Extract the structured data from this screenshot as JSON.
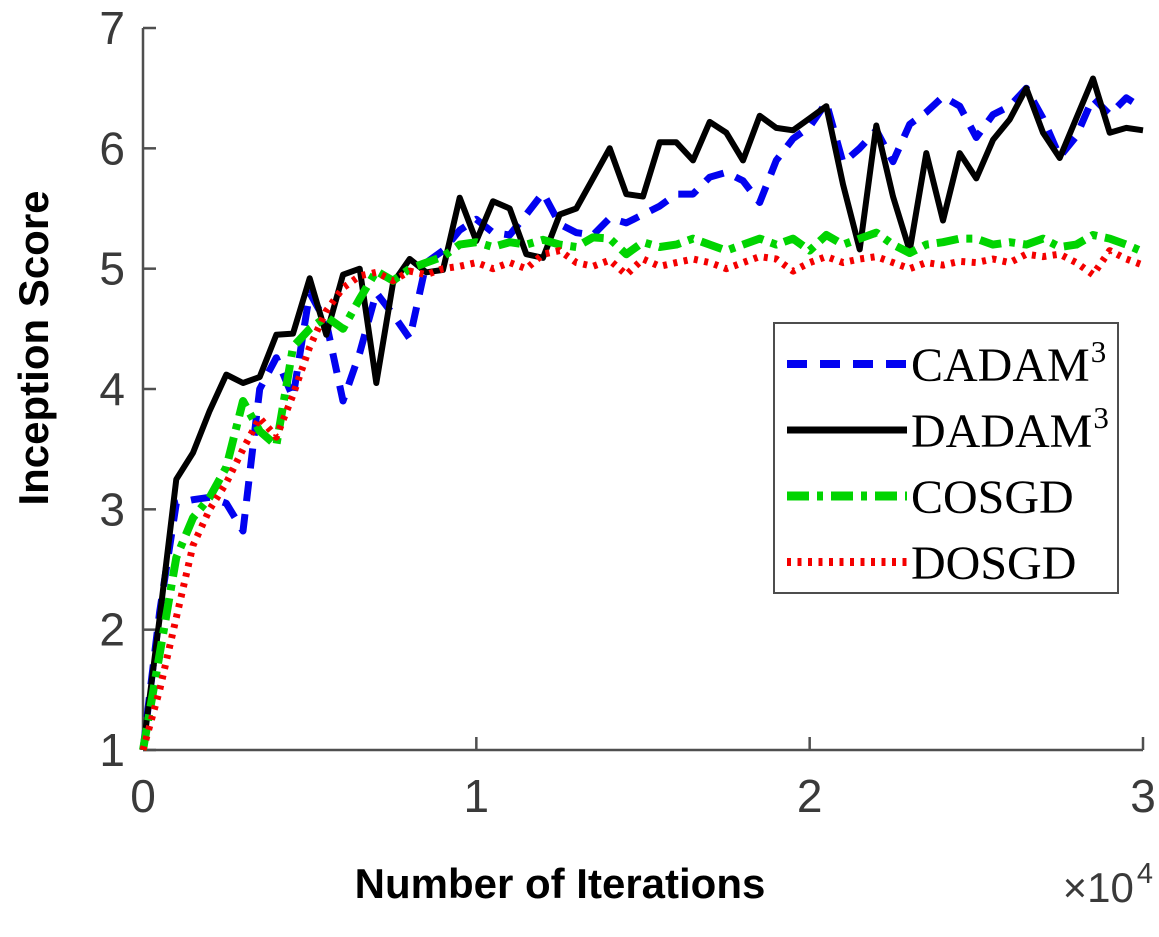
{
  "figure": {
    "xlabel": "Number of Iterations",
    "ylabel": "Inception Score",
    "x_offset_base": "×10",
    "x_offset_exp": "4"
  },
  "legend": {
    "items": [
      {
        "id": "cadam3",
        "label": "CADAM",
        "sup": "3"
      },
      {
        "id": "dadam3",
        "label": "DADAM",
        "sup": "3"
      },
      {
        "id": "cosgd",
        "label": "COSGD",
        "sup": ""
      },
      {
        "id": "dosgd",
        "label": "DOSGD",
        "sup": ""
      }
    ]
  },
  "chart_data": {
    "type": "line",
    "title": "",
    "xlabel": "Number of Iterations",
    "ylabel": "Inception Score",
    "x_units": "iterations × 10^4",
    "xlim": [
      0,
      3
    ],
    "ylim": [
      1,
      7
    ],
    "xticks": [
      0,
      1,
      2,
      3
    ],
    "yticks": [
      1,
      2,
      3,
      4,
      5,
      6,
      7
    ],
    "grid": false,
    "legend_position": "right-middle",
    "axis_color": "#4f4f4f",
    "tick_label_color": "#3a3a3a",
    "x": [
      0,
      0.05,
      0.1,
      0.15,
      0.2,
      0.25,
      0.3,
      0.35,
      0.4,
      0.45,
      0.5,
      0.55,
      0.6,
      0.65,
      0.7,
      0.75,
      0.8,
      0.85,
      0.9,
      0.95,
      1.0,
      1.05,
      1.1,
      1.15,
      1.2,
      1.25,
      1.3,
      1.35,
      1.4,
      1.45,
      1.5,
      1.55,
      1.6,
      1.65,
      1.7,
      1.75,
      1.8,
      1.85,
      1.9,
      1.95,
      2.0,
      2.05,
      2.1,
      2.15,
      2.2,
      2.25,
      2.3,
      2.35,
      2.4,
      2.45,
      2.5,
      2.55,
      2.6,
      2.65,
      2.7,
      2.75,
      2.8,
      2.85,
      2.9,
      2.95,
      3.0
    ],
    "series": [
      {
        "name": "CADAM3",
        "color": "#0202f0",
        "dash": "20 13",
        "width": 7,
        "values": [
          1.0,
          2.15,
          3.05,
          3.08,
          3.1,
          3.05,
          2.82,
          4.0,
          4.26,
          3.93,
          4.8,
          4.55,
          3.9,
          4.3,
          4.8,
          4.62,
          4.42,
          5.05,
          5.15,
          5.32,
          5.41,
          5.3,
          5.28,
          5.45,
          5.63,
          5.37,
          5.3,
          5.28,
          5.42,
          5.38,
          5.45,
          5.52,
          5.62,
          5.62,
          5.76,
          5.8,
          5.73,
          5.55,
          5.9,
          6.08,
          6.18,
          6.38,
          5.88,
          6.0,
          6.15,
          5.89,
          6.2,
          6.3,
          6.43,
          6.35,
          6.09,
          6.28,
          6.35,
          6.5,
          6.25,
          5.93,
          6.1,
          6.42,
          6.28,
          6.42,
          6.33
        ]
      },
      {
        "name": "DADAM3",
        "color": "#000000",
        "dash": "",
        "width": 6,
        "values": [
          1.0,
          2.1,
          3.25,
          3.47,
          3.82,
          4.12,
          4.05,
          4.1,
          4.45,
          4.46,
          4.92,
          4.45,
          4.95,
          5.0,
          4.05,
          4.88,
          5.08,
          4.97,
          4.99,
          5.59,
          5.23,
          5.56,
          5.5,
          5.12,
          5.09,
          5.45,
          5.5,
          5.75,
          6.0,
          5.62,
          5.6,
          6.05,
          6.05,
          5.9,
          6.22,
          6.13,
          5.9,
          6.27,
          6.17,
          6.15,
          6.25,
          6.35,
          5.7,
          5.16,
          6.19,
          5.6,
          5.15,
          5.96,
          5.4,
          5.96,
          5.75,
          6.07,
          6.24,
          6.5,
          6.13,
          5.92,
          6.25,
          6.58,
          6.13,
          6.17,
          6.15
        ]
      },
      {
        "name": "COSGD",
        "color": "#00d400",
        "dash": "22 8 6 8",
        "width": 8,
        "values": [
          1.0,
          1.8,
          2.6,
          2.93,
          3.1,
          3.35,
          3.9,
          3.65,
          3.53,
          4.35,
          4.5,
          4.6,
          4.5,
          4.75,
          4.98,
          4.9,
          5.0,
          5.05,
          5.1,
          5.2,
          5.22,
          5.18,
          5.22,
          5.2,
          5.24,
          5.2,
          5.18,
          5.26,
          5.25,
          5.12,
          5.22,
          5.18,
          5.2,
          5.25,
          5.2,
          5.15,
          5.2,
          5.25,
          5.2,
          5.25,
          5.15,
          5.28,
          5.2,
          5.25,
          5.3,
          5.2,
          5.13,
          5.2,
          5.22,
          5.25,
          5.25,
          5.2,
          5.22,
          5.2,
          5.25,
          5.18,
          5.2,
          5.28,
          5.25,
          5.2,
          5.14
        ]
      },
      {
        "name": "DOSGD",
        "color": "#f40000",
        "dash": "4 6.5",
        "width": 7,
        "values": [
          1.0,
          1.5,
          2.1,
          2.7,
          3.0,
          3.22,
          3.5,
          3.76,
          3.6,
          3.95,
          4.35,
          4.65,
          4.84,
          4.94,
          4.97,
          4.9,
          4.98,
          4.95,
          5.0,
          5.02,
          5.05,
          5.0,
          5.05,
          5.0,
          5.12,
          5.15,
          5.05,
          5.02,
          5.07,
          4.95,
          5.08,
          5.02,
          5.05,
          5.08,
          5.05,
          5.0,
          5.05,
          5.1,
          5.08,
          4.98,
          5.05,
          5.1,
          5.05,
          5.08,
          5.1,
          5.05,
          5.0,
          5.05,
          5.03,
          5.06,
          5.05,
          5.08,
          5.05,
          5.12,
          5.1,
          5.12,
          5.05,
          4.95,
          5.15,
          5.08,
          5.03
        ]
      }
    ]
  }
}
